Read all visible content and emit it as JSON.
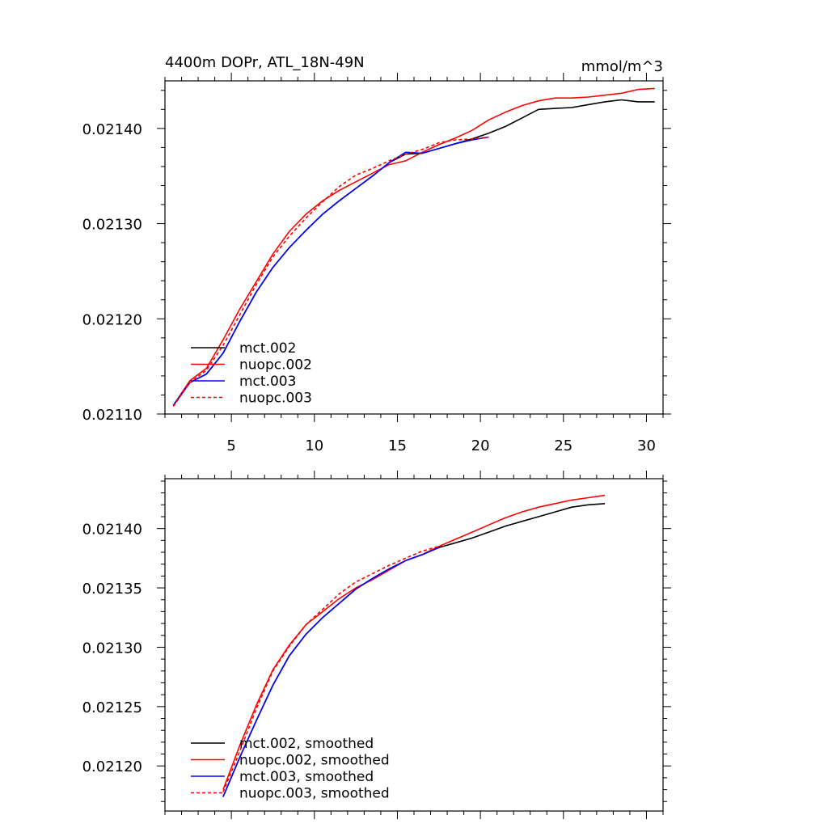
{
  "title_left": "4400m DOPr, ATL_18N-49N",
  "title_right": "mmol/m^3",
  "colors": {
    "mct.002": "#000000",
    "nuopc.002": "#ff0000",
    "mct.003": "#0000ff",
    "nuopc.003": "#ff0000"
  },
  "chart_data": [
    {
      "type": "line",
      "title": "4400m DOPr, ATL_18N-49N",
      "units": "mmol/m^3",
      "xlim": [
        1,
        31
      ],
      "ylim": [
        0.0211,
        0.02145
      ],
      "xticks": [
        5,
        10,
        15,
        20,
        25,
        30
      ],
      "yticks": [
        0.0211,
        0.0212,
        0.0213,
        0.0214
      ],
      "yticklabels": [
        "0.02110",
        "0.02120",
        "0.02130",
        "0.02140"
      ],
      "show_x_labels": true,
      "legend": "bottom-left",
      "series": [
        {
          "name": "mct.002",
          "color": "#000000",
          "dash": false,
          "x": [
            1.5,
            2.5,
            3.5,
            4.5,
            5.5,
            6.5,
            7.5,
            8.5,
            9.5,
            10.5,
            11.5,
            12.5,
            13.5,
            14.5,
            15.5,
            16.5,
            17.5,
            18.5,
            19.5,
            20.5,
            21.5,
            22.5,
            23.5,
            24.5,
            25.5,
            26.5,
            27.5,
            28.5,
            29.5,
            30.5
          ],
          "y": [
            0.021109,
            0.021133,
            0.021142,
            0.021164,
            0.021197,
            0.021228,
            0.021254,
            0.021275,
            0.021293,
            0.02131,
            0.021324,
            0.021337,
            0.02135,
            0.021364,
            0.021373,
            0.021374,
            0.021379,
            0.021384,
            0.021389,
            0.021395,
            0.021402,
            0.021411,
            0.02142,
            0.021421,
            0.021422,
            0.021425,
            0.021428,
            0.02143,
            0.021428,
            0.021428
          ]
        },
        {
          "name": "nuopc.002",
          "color": "#ff0000",
          "dash": false,
          "x": [
            1.5,
            2.5,
            3.5,
            4.5,
            5.5,
            6.5,
            7.5,
            8.5,
            9.5,
            10.5,
            11.5,
            12.5,
            13.5,
            14.5,
            15.5,
            16.5,
            17.5,
            18.5,
            19.5,
            20.5,
            21.5,
            22.5,
            23.5,
            24.5,
            25.5,
            26.5,
            27.5,
            28.5,
            29.5,
            30.5
          ],
          "y": [
            0.021109,
            0.021135,
            0.021148,
            0.021178,
            0.02121,
            0.021239,
            0.021268,
            0.021292,
            0.02131,
            0.021324,
            0.021335,
            0.021344,
            0.021353,
            0.021362,
            0.021366,
            0.021375,
            0.021383,
            0.02139,
            0.021398,
            0.021409,
            0.021417,
            0.021424,
            0.021429,
            0.021432,
            0.021432,
            0.021433,
            0.021435,
            0.021437,
            0.021441,
            0.021442
          ]
        },
        {
          "name": "mct.003",
          "color": "#0000ff",
          "dash": false,
          "x": [
            1.5,
            2.5,
            3.5,
            4.5,
            5.5,
            6.5,
            7.5,
            8.5,
            9.5,
            10.5,
            11.5,
            12.5,
            13.5,
            14.5,
            15.5,
            16.5,
            17.5,
            18.5,
            19.5,
            20.5
          ],
          "y": [
            0.021109,
            0.021133,
            0.021142,
            0.021164,
            0.021197,
            0.021228,
            0.021254,
            0.021275,
            0.021293,
            0.02131,
            0.021324,
            0.021337,
            0.02135,
            0.021364,
            0.021375,
            0.021374,
            0.021379,
            0.021384,
            0.021388,
            0.021391
          ]
        },
        {
          "name": "nuopc.003",
          "color": "#ff0000",
          "dash": true,
          "x": [
            1.5,
            2.5,
            3.5,
            4.5,
            5.5,
            6.5,
            7.5,
            8.5,
            9.5,
            10.5,
            11.5,
            12.5,
            13.5,
            14.5,
            15.5,
            16.5,
            17.5,
            18.5,
            19.5,
            20.5
          ],
          "y": [
            0.021108,
            0.021133,
            0.021146,
            0.021172,
            0.021204,
            0.021236,
            0.021265,
            0.021287,
            0.021306,
            0.021323,
            0.021339,
            0.021351,
            0.021358,
            0.021366,
            0.021373,
            0.021378,
            0.021385,
            0.021388,
            0.021389,
            0.021391
          ]
        }
      ]
    },
    {
      "type": "line",
      "xlim": [
        1,
        31
      ],
      "ylim": [
        0.021162,
        0.021442
      ],
      "xticks": [
        5,
        10,
        15,
        20,
        25,
        30
      ],
      "yticks": [
        0.0212,
        0.02125,
        0.0213,
        0.02135,
        0.0214
      ],
      "yticklabels": [
        "0.02120",
        "0.02125",
        "0.02130",
        "0.02135",
        "0.02140"
      ],
      "show_x_labels": false,
      "legend": "bottom-left",
      "series": [
        {
          "name": "mct.002, smoothed",
          "color": "#000000",
          "dash": false,
          "x": [
            4.5,
            5.5,
            6.5,
            7.5,
            8.5,
            9.5,
            10.5,
            11.5,
            12.5,
            13.5,
            14.5,
            15.5,
            16.5,
            17.5,
            18.5,
            19.5,
            20.5,
            21.5,
            22.5,
            23.5,
            24.5,
            25.5,
            26.5,
            27.5
          ],
          "y": [
            0.021174,
            0.021207,
            0.021238,
            0.021268,
            0.021293,
            0.021311,
            0.021325,
            0.021337,
            0.021349,
            0.021358,
            0.021366,
            0.021373,
            0.021378,
            0.021384,
            0.021388,
            0.021392,
            0.021397,
            0.021402,
            0.021406,
            0.02141,
            0.021414,
            0.021418,
            0.02142,
            0.021421
          ]
        },
        {
          "name": "nuopc.002, smoothed",
          "color": "#ff0000",
          "dash": false,
          "x": [
            4.5,
            5.5,
            6.5,
            7.5,
            8.5,
            9.5,
            10.5,
            11.5,
            12.5,
            13.5,
            14.5,
            15.5,
            16.5,
            17.5,
            18.5,
            19.5,
            20.5,
            21.5,
            22.5,
            23.5,
            24.5,
            25.5,
            26.5,
            27.5
          ],
          "y": [
            0.02118,
            0.021217,
            0.021251,
            0.021281,
            0.021302,
            0.021319,
            0.02133,
            0.021341,
            0.02135,
            0.021357,
            0.021365,
            0.021373,
            0.021378,
            0.021385,
            0.021391,
            0.021397,
            0.021403,
            0.021409,
            0.021414,
            0.021418,
            0.021421,
            0.021424,
            0.021426,
            0.021428
          ]
        },
        {
          "name": "mct.003, smoothed",
          "color": "#0000ff",
          "dash": false,
          "x": [
            4.5,
            5.5,
            6.5,
            7.5,
            8.5,
            9.5,
            10.5,
            11.5,
            12.5,
            13.5,
            14.5,
            15.5,
            16.5,
            17.5
          ],
          "y": [
            0.021174,
            0.021207,
            0.021238,
            0.021268,
            0.021293,
            0.021311,
            0.021325,
            0.021337,
            0.021349,
            0.021358,
            0.021366,
            0.021373,
            0.021378,
            0.021384
          ]
        },
        {
          "name": "nuopc.003, smoothed",
          "color": "#ff0000",
          "dash": true,
          "x": [
            4.5,
            5.5,
            6.5,
            7.5,
            8.5,
            9.5,
            10.5,
            11.5,
            12.5,
            13.5,
            14.5,
            15.5,
            16.5,
            17.5
          ],
          "y": [
            0.021178,
            0.021212,
            0.021248,
            0.02128,
            0.021301,
            0.021319,
            0.021332,
            0.021345,
            0.021355,
            0.021362,
            0.021369,
            0.021375,
            0.021381,
            0.021385
          ]
        }
      ]
    }
  ]
}
